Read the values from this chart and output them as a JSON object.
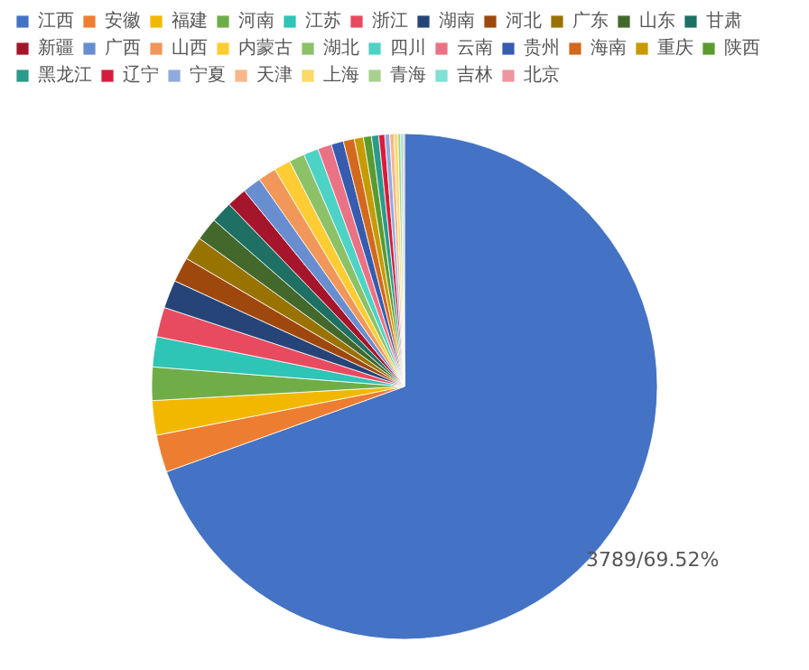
{
  "chart_data": {
    "type": "pie",
    "categories": [
      "江西",
      "安徽",
      "福建",
      "河南",
      "江苏",
      "浙江",
      "湖南",
      "河北",
      "广东",
      "山东",
      "甘肃",
      "新疆",
      "广西",
      "山西",
      "内蒙古",
      "湖北",
      "四川",
      "云南",
      "贵州",
      "海南",
      "重庆",
      "陕西",
      "黑龙江",
      "辽宁",
      "宁夏",
      "天津",
      "上海",
      "青海",
      "吉林",
      "北京"
    ],
    "values": [
      3789,
      130,
      120,
      116,
      105,
      103,
      98,
      87,
      82,
      80,
      75,
      70,
      65,
      63,
      58,
      54,
      52,
      48,
      43,
      38,
      32,
      28,
      25,
      21,
      17,
      15,
      13,
      10,
      8,
      5
    ],
    "colors": [
      "#4472c4",
      "#ed7d31",
      "#f2b800",
      "#70ad47",
      "#2ec4b6",
      "#e84a5f",
      "#264478",
      "#9e480e",
      "#997300",
      "#43682b",
      "#1e7064",
      "#a5152b",
      "#698ed0",
      "#f1975a",
      "#ffcd33",
      "#8cc168",
      "#4dd3c5",
      "#ea7285",
      "#355cae",
      "#d2691e",
      "#c69a00",
      "#5b9a2f",
      "#2a9a8c",
      "#d81b3d",
      "#8faadc",
      "#f8b78b",
      "#ffd966",
      "#a9d18e",
      "#7fe0d6",
      "#ef959f"
    ],
    "value_labels": [
      "3789/69.52%",
      null,
      null,
      null,
      null,
      null,
      null,
      null,
      null,
      null,
      null,
      null,
      null,
      null,
      null,
      null,
      null,
      null,
      null,
      null,
      null,
      null,
      null,
      null,
      null,
      null,
      null,
      null,
      null,
      null
    ],
    "legend": "top"
  }
}
